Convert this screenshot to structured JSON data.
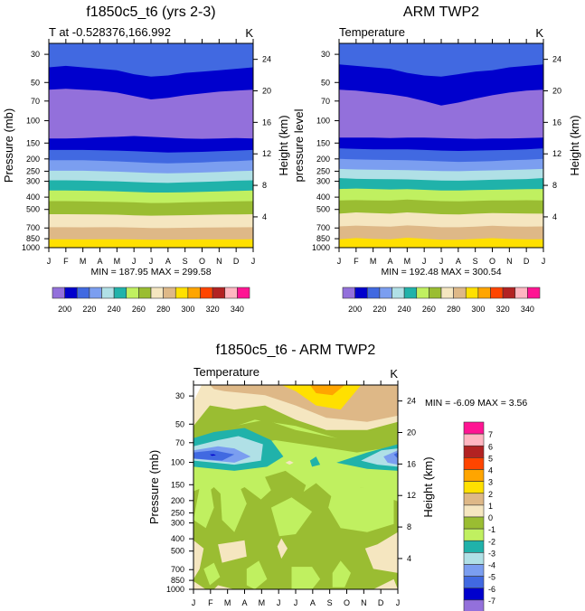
{
  "chart_data": [
    {
      "type": "heatmap",
      "subtype": "filled-contour",
      "title": "f1850c5_t6 (yrs 2-3)",
      "left_label": "T at -0.528376,166.992",
      "right_label": "K",
      "ylabel": "Pressure (mb)",
      "ylabel_right": "Height (km)",
      "xlabel": "",
      "x_ticks": [
        "J",
        "F",
        "M",
        "A",
        "M",
        "J",
        "J",
        "A",
        "S",
        "O",
        "N",
        "D",
        "J"
      ],
      "y_ticks": [
        30,
        50,
        70,
        100,
        150,
        200,
        250,
        300,
        400,
        500,
        700,
        850,
        1000
      ],
      "y_ticks_right": [
        24,
        20,
        16,
        12,
        8,
        4
      ],
      "ylim": [
        1000,
        25
      ],
      "yscale": "log",
      "min_max_text": "MIN = 187.95 MAX = 299.58",
      "min": 187.95,
      "max": 299.58,
      "colorbar": {
        "orientation": "horizontal",
        "colors": [
          "#9370DB",
          "#0000CD",
          "#4169E1",
          "#7B9EF0",
          "#B0E0E6",
          "#20B2AA",
          "#C0F060",
          "#9ABD32",
          "#F5E6C0",
          "#DEB887",
          "#FFE000",
          "#FFA500",
          "#FF4500",
          "#B22222",
          "#FFB6C1",
          "#FF1493"
        ],
        "labels": [
          "200",
          "220",
          "240",
          "260",
          "280",
          "300",
          "320",
          "340"
        ]
      },
      "bands": [
        {
          "level_color": "#4169E1",
          "top_p": [
            25,
            25,
            25,
            25,
            25,
            25,
            25,
            25,
            25,
            25,
            25,
            25,
            25
          ]
        },
        {
          "level_color": "#0000CD",
          "top_p": [
            38,
            37,
            38,
            39,
            40,
            43,
            45,
            44,
            42,
            41,
            40,
            39,
            38
          ]
        },
        {
          "level_color": "#9370DB",
          "top_p": [
            57,
            56,
            57,
            58,
            60,
            64,
            68,
            66,
            63,
            61,
            59,
            58,
            57
          ]
        },
        {
          "level_color": "#0000CD",
          "top_p": [
            138,
            138,
            137,
            135,
            134,
            132,
            134,
            136,
            138,
            139,
            138,
            137,
            138
          ]
        },
        {
          "level_color": "#4169E1",
          "top_p": [
            170,
            170,
            170,
            171,
            172,
            174,
            176,
            178,
            177,
            176,
            174,
            172,
            170
          ]
        },
        {
          "level_color": "#7B9EF0",
          "top_p": [
            205,
            205,
            205,
            207,
            209,
            212,
            215,
            217,
            215,
            213,
            210,
            208,
            205
          ]
        },
        {
          "level_color": "#B0E0E6",
          "top_p": [
            248,
            248,
            248,
            250,
            252,
            255,
            258,
            260,
            258,
            256,
            253,
            250,
            248
          ]
        },
        {
          "level_color": "#20B2AA",
          "top_p": [
            295,
            295,
            296,
            298,
            300,
            304,
            307,
            309,
            306,
            303,
            300,
            297,
            295
          ]
        },
        {
          "level_color": "#C0F060",
          "top_p": [
            355,
            355,
            356,
            358,
            360,
            364,
            368,
            368,
            366,
            363,
            360,
            357,
            355
          ]
        },
        {
          "level_color": "#9ABD32",
          "top_p": [
            430,
            430,
            432,
            434,
            436,
            440,
            445,
            444,
            440,
            437,
            434,
            432,
            430
          ]
        },
        {
          "level_color": "#F5E6C0",
          "top_p": [
            545,
            545,
            546,
            548,
            550,
            556,
            560,
            558,
            555,
            552,
            549,
            547,
            545
          ]
        },
        {
          "level_color": "#DEB887",
          "top_p": [
            690,
            690,
            692,
            690,
            690,
            695,
            700,
            700,
            697,
            695,
            693,
            692,
            690
          ]
        },
        {
          "level_color": "#FFE000",
          "top_p": [
            860,
            860,
            862,
            860,
            860,
            862,
            865,
            866,
            864,
            862,
            862,
            861,
            860
          ]
        }
      ]
    },
    {
      "type": "heatmap",
      "subtype": "filled-contour",
      "title": "ARM TWP2",
      "left_label": "Temperature",
      "right_label": "K",
      "ylabel": "pressure level",
      "ylabel_right": "Height (km)",
      "xlabel": "",
      "x_ticks": [
        "J",
        "F",
        "M",
        "A",
        "M",
        "J",
        "J",
        "A",
        "S",
        "O",
        "N",
        "D",
        "J"
      ],
      "y_ticks": [
        30,
        50,
        70,
        100,
        150,
        200,
        250,
        300,
        400,
        500,
        700,
        850,
        1000
      ],
      "y_ticks_right": [
        24,
        20,
        16,
        12,
        8,
        4
      ],
      "ylim": [
        1000,
        25
      ],
      "yscale": "log",
      "min_max_text": "MIN = 192.48 MAX = 300.54",
      "min": 192.48,
      "max": 300.54,
      "colorbar": {
        "orientation": "horizontal",
        "colors": [
          "#9370DB",
          "#0000CD",
          "#4169E1",
          "#7B9EF0",
          "#B0E0E6",
          "#20B2AA",
          "#C0F060",
          "#9ABD32",
          "#F5E6C0",
          "#DEB887",
          "#FFE000",
          "#FFA500",
          "#FF4500",
          "#B22222",
          "#FFB6C1",
          "#FF1493"
        ],
        "labels": [
          "200",
          "220",
          "240",
          "260",
          "280",
          "300",
          "320",
          "340"
        ]
      },
      "bands": [
        {
          "level_color": "#4169E1",
          "top_p": [
            25,
            25,
            25,
            25,
            25,
            25,
            25,
            25,
            25,
            25,
            25,
            25,
            25
          ]
        },
        {
          "level_color": "#0000CD",
          "top_p": [
            36,
            37,
            38,
            39,
            42,
            44,
            45,
            43,
            41,
            40,
            38,
            37,
            36
          ]
        },
        {
          "level_color": "#9370DB",
          "top_p": [
            57,
            58,
            60,
            62,
            65,
            70,
            76,
            72,
            67,
            63,
            60,
            58,
            57
          ]
        },
        {
          "level_color": "#0000CD",
          "top_p": [
            136,
            136,
            136,
            137,
            136,
            136,
            137,
            138,
            139,
            138,
            138,
            137,
            136
          ]
        },
        {
          "level_color": "#4169E1",
          "top_p": [
            165,
            167,
            168,
            168,
            168,
            170,
            172,
            173,
            172,
            171,
            170,
            168,
            165
          ]
        },
        {
          "level_color": "#7B9EF0",
          "top_p": [
            200,
            202,
            203,
            204,
            205,
            207,
            209,
            211,
            210,
            208,
            205,
            203,
            200
          ]
        },
        {
          "level_color": "#B0E0E6",
          "top_p": [
            240,
            242,
            243,
            244,
            245,
            247,
            249,
            250,
            248,
            246,
            244,
            242,
            240
          ]
        },
        {
          "level_color": "#20B2AA",
          "top_p": [
            283,
            287,
            288,
            289,
            290,
            293,
            296,
            297,
            295,
            292,
            290,
            288,
            283
          ]
        },
        {
          "level_color": "#C0F060",
          "top_p": [
            345,
            342,
            345,
            348,
            346,
            350,
            354,
            355,
            352,
            350,
            348,
            346,
            345
          ]
        },
        {
          "level_color": "#9ABD32",
          "top_p": [
            425,
            422,
            424,
            426,
            418,
            425,
            430,
            432,
            428,
            425,
            424,
            423,
            425
          ]
        },
        {
          "level_color": "#F5E6C0",
          "top_p": [
            540,
            528,
            535,
            540,
            528,
            536,
            545,
            548,
            540,
            535,
            536,
            538,
            540
          ]
        },
        {
          "level_color": "#DEB887",
          "top_p": [
            680,
            670,
            678,
            684,
            668,
            678,
            690,
            690,
            682,
            672,
            680,
            684,
            680
          ]
        },
        {
          "level_color": "#FFE000",
          "top_p": [
            860,
            840,
            855,
            860,
            835,
            850,
            865,
            866,
            855,
            842,
            855,
            858,
            860
          ]
        }
      ]
    },
    {
      "type": "heatmap",
      "subtype": "filled-contour-difference",
      "title": "f1850c5_t6 - ARM TWP2",
      "left_label": "Temperature",
      "right_label": "K",
      "ylabel": "Pressure (mb)",
      "ylabel_right": "Height (km)",
      "xlabel": "",
      "x_ticks": [
        "J",
        "F",
        "M",
        "A",
        "M",
        "J",
        "J",
        "A",
        "S",
        "O",
        "N",
        "D",
        "J"
      ],
      "y_ticks": [
        30,
        50,
        70,
        100,
        150,
        200,
        250,
        300,
        400,
        500,
        700,
        850,
        1000
      ],
      "y_ticks_right": [
        24,
        20,
        16,
        12,
        8,
        4
      ],
      "ylim": [
        1000,
        25
      ],
      "yscale": "log",
      "min_max_text": "MIN =  -6.09 MAX =   3.56",
      "min": -6.09,
      "max": 3.56,
      "colorbar": {
        "orientation": "vertical",
        "colors": [
          "#FF1493",
          "#FFB6C1",
          "#B22222",
          "#FF4500",
          "#FFA500",
          "#FFE000",
          "#DEB887",
          "#F5E6C0",
          "#9ABD32",
          "#C0F060",
          "#20B2AA",
          "#B0E0E6",
          "#7B9EF0",
          "#4169E1",
          "#0000CD",
          "#9370DB"
        ],
        "labels": [
          "7",
          "6",
          "5",
          "4",
          "3",
          "2",
          "1",
          "0",
          "-1",
          "-2",
          "-3",
          "-4",
          "-5",
          "-6",
          "-7"
        ]
      },
      "background_color": "#C0F060"
    }
  ]
}
